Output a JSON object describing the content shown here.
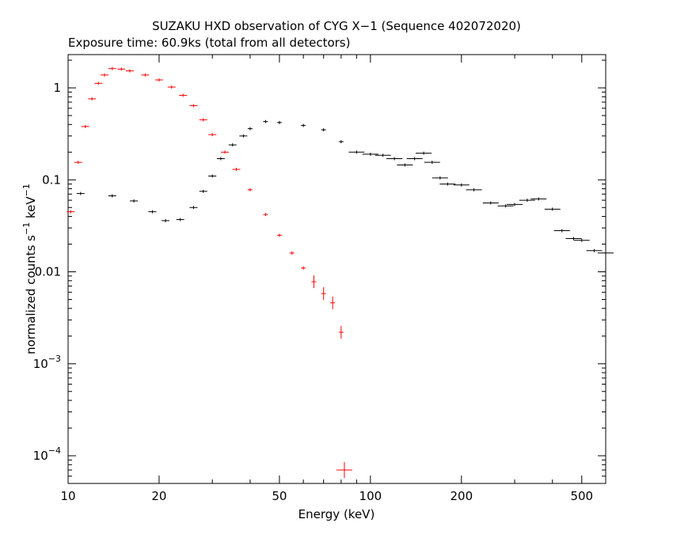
{
  "chart_data": {
    "type": "scatter",
    "title": "SUZAKU HXD observation of CYG X−1 (Sequence 402072020)",
    "subtitle": "Exposure time: 60.9ks (total from all detectors)",
    "xlabel": "Energy (keV)",
    "ylabel": "normalized counts s−1 keV−1",
    "x_scale": "log",
    "y_scale": "log",
    "xlim": [
      10,
      600
    ],
    "ylim": [
      5e-05,
      2.3
    ],
    "x_ticks": [
      {
        "value": 10,
        "label": "10"
      },
      {
        "value": 20,
        "label": "20"
      },
      {
        "value": 50,
        "label": "50"
      },
      {
        "value": 100,
        "label": "100"
      },
      {
        "value": 200,
        "label": "200"
      },
      {
        "value": 500,
        "label": "500"
      }
    ],
    "y_ticks": [
      {
        "value": 1,
        "label": "1"
      },
      {
        "value": 0.1,
        "label": "0.1"
      },
      {
        "value": 0.01,
        "label": "0.01"
      },
      {
        "value": 0.001,
        "label": "10",
        "sup": "−3"
      },
      {
        "value": 0.0001,
        "label": "10",
        "sup": "−4"
      }
    ],
    "grid": false,
    "series": [
      {
        "color": "#ff0000",
        "points": [
          [
            10.2,
            0.045
          ],
          [
            10.8,
            0.155
          ],
          [
            11.4,
            0.38
          ],
          [
            12.0,
            0.76
          ],
          [
            12.6,
            1.12
          ],
          [
            13.2,
            1.38
          ],
          [
            14.0,
            1.62
          ],
          [
            15.0,
            1.6
          ],
          [
            16.0,
            1.53
          ],
          [
            18.0,
            1.38
          ],
          [
            20.0,
            1.22
          ],
          [
            22.0,
            1.02
          ],
          [
            24.0,
            0.83
          ],
          [
            26.0,
            0.64
          ],
          [
            28.0,
            0.45
          ],
          [
            30.0,
            0.31
          ],
          [
            33.0,
            0.2
          ],
          [
            36.0,
            0.13
          ],
          [
            40.0,
            0.078
          ],
          [
            45.0,
            0.042
          ],
          [
            50.0,
            0.025
          ],
          [
            55.0,
            0.016
          ],
          [
            60.0,
            0.011
          ],
          [
            65.0,
            0.0078
          ],
          [
            70.0,
            0.0058
          ],
          [
            75.0,
            0.0046
          ],
          [
            80.0,
            0.0022
          ],
          [
            82.0,
            7e-05
          ]
        ]
      },
      {
        "color": "#000000",
        "points": [
          [
            11.0,
            0.071
          ],
          [
            14.0,
            0.067
          ],
          [
            16.5,
            0.059
          ],
          [
            19.0,
            0.045
          ],
          [
            21.0,
            0.036
          ],
          [
            23.5,
            0.037
          ],
          [
            26.0,
            0.05
          ],
          [
            28.0,
            0.075
          ],
          [
            30.0,
            0.11
          ],
          [
            32.0,
            0.17
          ],
          [
            35.0,
            0.24
          ],
          [
            38.0,
            0.3
          ],
          [
            40.0,
            0.36
          ],
          [
            45.0,
            0.43
          ],
          [
            50.0,
            0.42
          ],
          [
            60.0,
            0.39
          ],
          [
            70.0,
            0.35
          ],
          [
            80.0,
            0.26
          ],
          [
            90.0,
            0.2
          ],
          [
            100.0,
            0.19
          ],
          [
            110.0,
            0.185
          ],
          [
            120.0,
            0.17
          ],
          [
            130.0,
            0.145
          ],
          [
            140.0,
            0.17
          ],
          [
            150.0,
            0.195
          ],
          [
            160.0,
            0.155
          ],
          [
            170.0,
            0.105
          ],
          [
            180.0,
            0.09
          ],
          [
            200.0,
            0.088
          ],
          [
            220.0,
            0.078
          ],
          [
            250.0,
            0.056
          ],
          [
            280.0,
            0.052
          ],
          [
            300.0,
            0.054
          ],
          [
            330.0,
            0.06
          ],
          [
            360.0,
            0.062
          ],
          [
            400.0,
            0.048
          ],
          [
            430.0,
            0.028
          ],
          [
            470.0,
            0.023
          ],
          [
            500.0,
            0.022
          ],
          [
            550.0,
            0.017
          ],
          [
            600.0,
            0.016
          ]
        ]
      }
    ]
  }
}
